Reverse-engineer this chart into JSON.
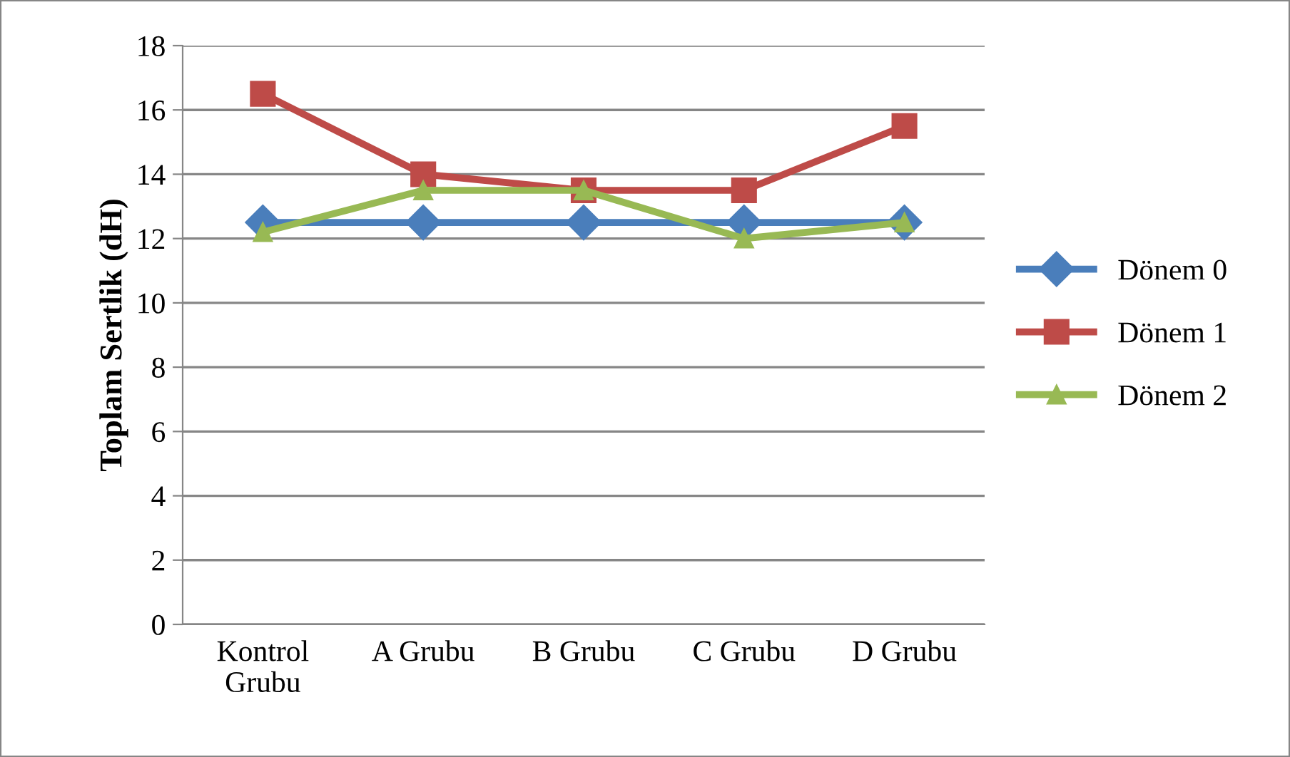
{
  "chart_data": {
    "type": "line",
    "ylabel": "Toplam Sertlik (dH)",
    "categories": [
      "Kontrol\nGrubu",
      "A Grubu",
      "B Grubu",
      "C Grubu",
      "D Grubu"
    ],
    "series": [
      {
        "name": "Dönem 0",
        "color": "#4a7ebb",
        "marker": "diamond",
        "values": [
          12.5,
          12.5,
          12.5,
          12.5,
          12.5
        ]
      },
      {
        "name": "Dönem 1",
        "color": "#be4b48",
        "marker": "square",
        "values": [
          16.5,
          14,
          13.5,
          13.5,
          15.5
        ]
      },
      {
        "name": "Dönem 2",
        "color": "#98b954",
        "marker": "triangle",
        "values": [
          12.2,
          13.5,
          13.5,
          12,
          12.5
        ]
      }
    ],
    "ylim": [
      0,
      18
    ],
    "yticks": [
      0,
      2,
      4,
      6,
      8,
      10,
      12,
      14,
      16,
      18
    ],
    "grid": "y",
    "legend": "right",
    "line_style": "solid"
  }
}
